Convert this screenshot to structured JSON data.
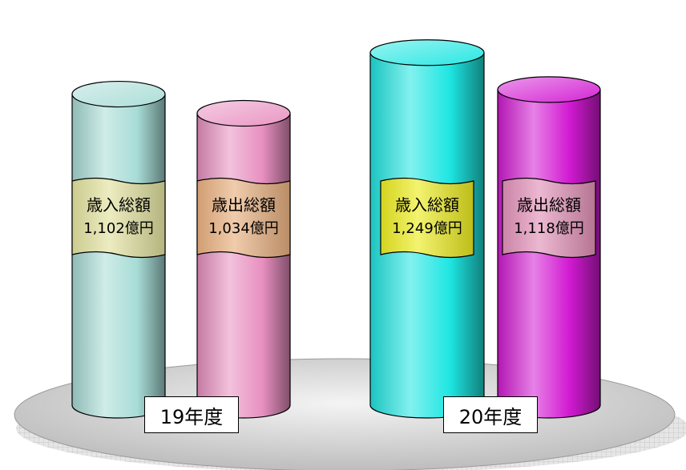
{
  "chart_data": {
    "type": "bar",
    "title": "",
    "categories": [
      "19年度",
      "20年度"
    ],
    "unit": "億円",
    "series_labels": [
      "歳入総額",
      "歳出総額"
    ],
    "bars": [
      {
        "category": "19年度",
        "label": "歳入総額",
        "value_text": "1,102億円",
        "value": 1102
      },
      {
        "category": "19年度",
        "label": "歳出総額",
        "value_text": "1,034億円",
        "value": 1034
      },
      {
        "category": "20年度",
        "label": "歳入総額",
        "value_text": "1,249億円",
        "value": 1249
      },
      {
        "category": "20年度",
        "label": "歳出総額",
        "value_text": "1,118億円",
        "value": 1118
      }
    ],
    "colors": {
      "bar_19_revenue": "#a8dcd6",
      "bar_19_expenditure": "#e890c0",
      "bar_20_revenue": "#1ee6e2",
      "bar_20_expenditure": "#d21ad2",
      "label_19_revenue": "#e2e2a0",
      "label_19_expenditure": "#e8b080",
      "label_20_revenue": "#ecec22",
      "label_20_expenditure": "#e292b8",
      "platform": "#cfcfcf"
    }
  }
}
